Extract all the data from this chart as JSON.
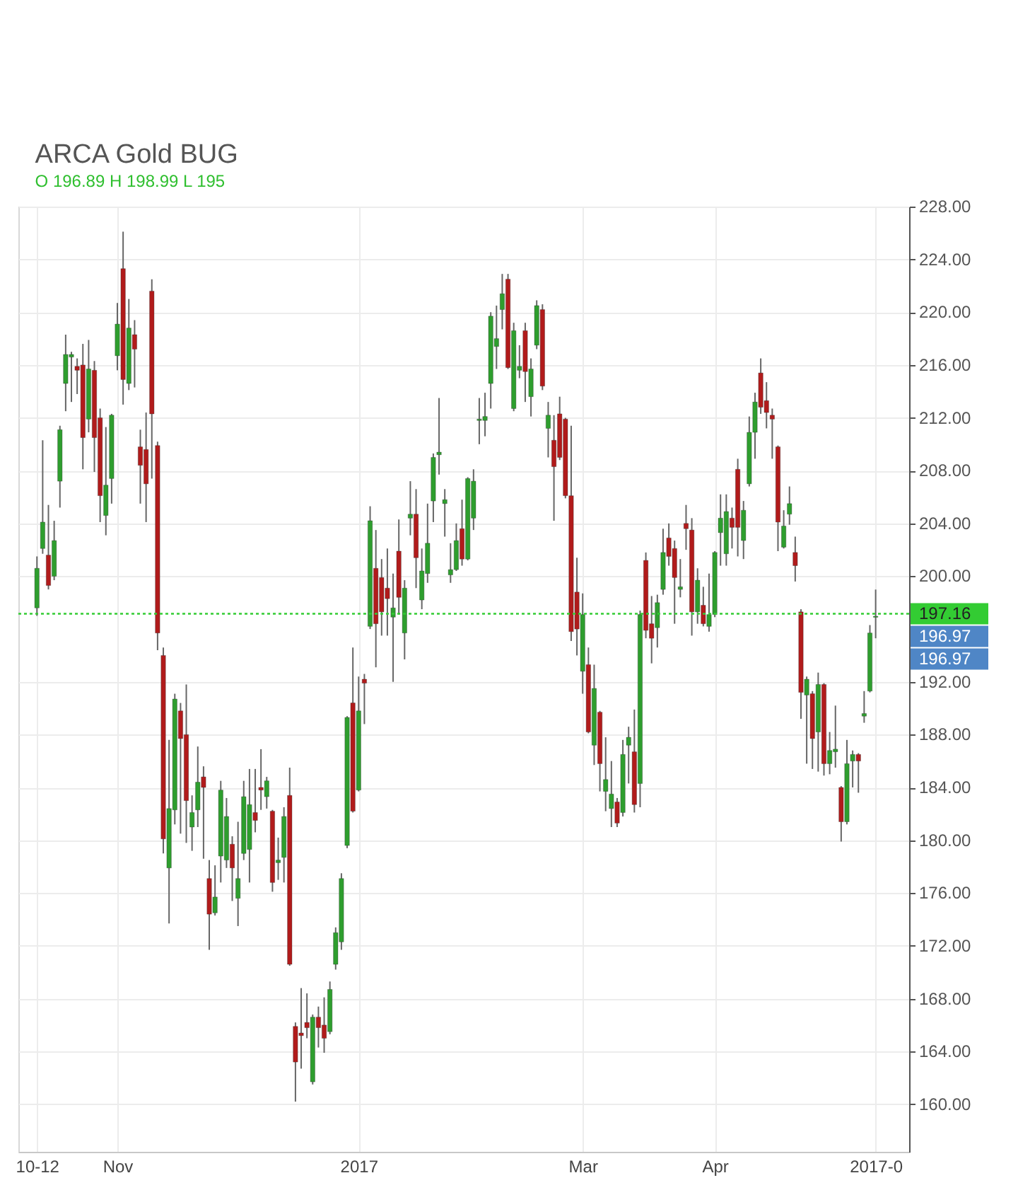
{
  "chart_data": {
    "type": "candlestick",
    "title": "ARCA Gold BUG",
    "subtitle": "O 196.89 H 198.99 L 195",
    "categories": [
      "10-12",
      null,
      null,
      null,
      null,
      null,
      null,
      null,
      null,
      null,
      null,
      null,
      null,
      null,
      "Nov",
      null,
      null,
      null,
      null,
      null,
      null,
      null,
      null,
      null,
      null,
      null,
      null,
      null,
      null,
      null,
      null,
      null,
      null,
      null,
      null,
      null,
      null,
      null,
      null,
      null,
      null,
      null,
      null,
      null,
      null,
      null,
      null,
      null,
      null,
      null,
      null,
      null,
      null,
      null,
      null,
      null,
      "2017",
      null,
      null,
      null,
      null,
      null,
      null,
      null,
      null,
      null,
      null,
      null,
      null,
      null,
      null,
      null,
      null,
      null,
      null,
      null,
      null,
      null,
      null,
      null,
      null,
      null,
      null,
      null,
      null,
      null,
      null,
      null,
      null,
      null,
      null,
      null,
      null,
      null,
      null,
      "Mar",
      null,
      null,
      null,
      null,
      null,
      null,
      null,
      null,
      null,
      null,
      null,
      null,
      null,
      null,
      null,
      null,
      null,
      null,
      null,
      null,
      null,
      null,
      "Apr",
      null,
      null,
      null,
      null,
      null,
      null,
      null,
      null,
      null,
      null,
      null,
      null,
      null,
      null,
      null,
      null,
      null,
      null,
      null,
      null,
      null,
      null,
      null,
      null,
      null,
      null,
      null,
      "2017-0"
    ],
    "ohlc": [
      [
        197.6,
        201.5,
        197.0,
        200.6
      ],
      [
        202.1,
        210.3,
        201.7,
        204.1
      ],
      [
        201.6,
        205.4,
        199.0,
        199.3
      ],
      [
        200.0,
        204.2,
        199.7,
        202.7
      ],
      [
        207.2,
        211.4,
        205.2,
        211.1
      ],
      [
        214.6,
        218.3,
        212.5,
        216.8
      ],
      [
        216.6,
        217.0,
        213.2,
        216.8
      ],
      [
        215.9,
        216.5,
        213.8,
        215.6
      ],
      [
        216.0,
        217.6,
        208.1,
        210.5
      ],
      [
        211.9,
        217.9,
        210.9,
        215.7
      ],
      [
        215.6,
        216.3,
        207.9,
        210.5
      ],
      [
        212.0,
        212.7,
        204.1,
        206.1
      ],
      [
        204.6,
        211.3,
        203.1,
        206.9
      ],
      [
        207.4,
        212.3,
        205.5,
        212.2
      ],
      [
        216.7,
        220.7,
        215.6,
        219.1
      ],
      [
        223.3,
        226.1,
        213.0,
        214.9
      ],
      [
        214.6,
        221.0,
        214.1,
        218.8
      ],
      [
        218.3,
        219.4,
        214.3,
        217.2
      ],
      [
        209.8,
        211.1,
        205.5,
        208.4
      ],
      [
        209.6,
        212.4,
        204.1,
        207.0
      ],
      [
        221.6,
        222.5,
        207.4,
        212.3
      ],
      [
        209.9,
        210.2,
        194.4,
        195.7
      ],
      [
        194.0,
        194.6,
        179.0,
        180.1
      ],
      [
        177.9,
        187.6,
        173.7,
        182.4
      ],
      [
        182.3,
        191.1,
        181.2,
        190.7
      ],
      [
        189.8,
        190.4,
        180.5,
        187.7
      ],
      [
        188.0,
        191.8,
        179.8,
        183.0
      ],
      [
        181.0,
        183.4,
        179.2,
        182.1
      ],
      [
        182.3,
        187.1,
        181.0,
        184.4
      ],
      [
        184.8,
        185.6,
        178.6,
        184.0
      ],
      [
        177.1,
        178.5,
        171.7,
        174.4
      ],
      [
        174.5,
        178.1,
        174.3,
        175.7
      ],
      [
        178.8,
        184.5,
        176.8,
        183.8
      ],
      [
        178.5,
        183.2,
        177.9,
        181.8
      ],
      [
        179.7,
        180.3,
        175.4,
        177.9
      ],
      [
        175.6,
        181.4,
        173.5,
        177.1
      ],
      [
        179.0,
        184.5,
        178.5,
        183.3
      ],
      [
        179.3,
        185.4,
        176.8,
        182.7
      ],
      [
        182.1,
        185.4,
        180.6,
        181.5
      ],
      [
        184.0,
        186.9,
        182.3,
        183.8
      ],
      [
        183.3,
        184.8,
        182.4,
        184.5
      ],
      [
        182.2,
        182.3,
        176.1,
        176.8
      ],
      [
        178.3,
        180.2,
        177.0,
        178.5
      ],
      [
        178.7,
        182.5,
        176.8,
        181.8
      ],
      [
        183.4,
        185.5,
        170.5,
        170.6
      ],
      [
        165.9,
        166.2,
        160.2,
        163.2
      ],
      [
        165.4,
        168.8,
        162.7,
        165.2
      ],
      [
        166.2,
        168.4,
        165.0,
        165.8
      ],
      [
        161.7,
        166.8,
        161.5,
        166.6
      ],
      [
        166.6,
        167.4,
        164.3,
        165.8
      ],
      [
        166.0,
        168.1,
        163.9,
        165.0
      ],
      [
        165.5,
        169.3,
        165.3,
        168.7
      ],
      [
        170.6,
        173.4,
        170.2,
        173.0
      ],
      [
        172.3,
        177.5,
        171.7,
        177.1
      ],
      [
        179.6,
        189.4,
        179.4,
        189.3
      ],
      [
        190.4,
        194.6,
        182.1,
        182.2
      ],
      [
        183.8,
        192.4,
        183.7,
        189.8
      ],
      [
        192.2,
        192.6,
        188.8,
        191.9
      ],
      [
        196.2,
        205.3,
        196.0,
        204.2
      ],
      [
        200.6,
        203.5,
        193.1,
        196.4
      ],
      [
        199.9,
        201.3,
        195.5,
        197.3
      ],
      [
        199.1,
        202.1,
        195.5,
        198.3
      ],
      [
        196.9,
        200.2,
        192.0,
        197.6
      ],
      [
        201.9,
        204.3,
        197.1,
        198.4
      ],
      [
        195.7,
        199.7,
        193.7,
        199.1
      ],
      [
        204.4,
        207.2,
        203.1,
        204.7
      ],
      [
        204.7,
        206.6,
        199.1,
        201.4
      ],
      [
        198.2,
        202.1,
        197.5,
        200.4
      ],
      [
        200.2,
        205.5,
        199.5,
        202.5
      ],
      [
        205.7,
        209.3,
        204.1,
        209.0
      ],
      [
        209.2,
        213.5,
        207.7,
        209.4
      ],
      [
        205.5,
        206.6,
        203.0,
        205.8
      ],
      [
        200.1,
        202.5,
        199.5,
        200.5
      ],
      [
        200.5,
        204.0,
        200.4,
        202.7
      ],
      [
        203.6,
        205.8,
        200.8,
        201.3
      ],
      [
        201.3,
        207.5,
        201.2,
        207.4
      ],
      [
        204.4,
        208.1,
        203.5,
        207.2
      ],
      [
        211.8,
        213.5,
        210.0,
        211.9
      ],
      [
        211.8,
        213.9,
        210.6,
        212.1
      ],
      [
        214.6,
        220.0,
        212.7,
        219.7
      ],
      [
        217.4,
        220.5,
        215.7,
        218.0
      ],
      [
        220.2,
        222.9,
        218.7,
        221.4
      ],
      [
        222.5,
        222.9,
        215.7,
        215.8
      ],
      [
        212.7,
        219.2,
        212.5,
        218.6
      ],
      [
        215.6,
        217.5,
        215.0,
        215.9
      ],
      [
        218.6,
        219.2,
        213.2,
        215.5
      ],
      [
        213.6,
        216.5,
        212.1,
        215.7
      ],
      [
        217.5,
        220.9,
        217.2,
        220.5
      ],
      [
        220.2,
        220.6,
        214.1,
        214.4
      ],
      [
        211.2,
        213.2,
        209.0,
        212.2
      ],
      [
        210.3,
        212.2,
        204.2,
        208.3
      ],
      [
        212.3,
        213.6,
        208.8,
        209.0
      ],
      [
        211.9,
        212.0,
        205.9,
        206.1
      ],
      [
        206.1,
        211.4,
        195.1,
        195.8
      ],
      [
        198.8,
        201.4,
        194.0,
        196.0
      ],
      [
        192.8,
        198.7,
        191.1,
        197.1
      ],
      [
        193.3,
        194.6,
        188.1,
        188.2
      ],
      [
        187.2,
        193.3,
        185.7,
        191.5
      ],
      [
        189.7,
        189.8,
        183.7,
        185.8
      ],
      [
        183.7,
        187.8,
        182.2,
        184.6
      ],
      [
        182.4,
        186.0,
        181.0,
        183.5
      ],
      [
        182.9,
        183.2,
        181.0,
        181.3
      ],
      [
        182.1,
        187.6,
        181.8,
        186.5
      ],
      [
        187.2,
        188.6,
        184.3,
        187.8
      ],
      [
        186.7,
        189.9,
        182.1,
        182.7
      ],
      [
        184.3,
        197.4,
        182.5,
        197.1
      ],
      [
        201.2,
        201.8,
        195.3,
        195.9
      ],
      [
        196.4,
        198.5,
        193.4,
        195.3
      ],
      [
        196.1,
        198.6,
        194.6,
        198.0
      ],
      [
        199.0,
        203.6,
        198.6,
        201.8
      ],
      [
        202.9,
        204.0,
        200.8,
        201.5
      ],
      [
        202.1,
        202.7,
        196.4,
        199.9
      ],
      [
        199.0,
        201.3,
        198.4,
        199.2
      ],
      [
        204.0,
        205.4,
        202.0,
        203.6
      ],
      [
        203.5,
        204.4,
        195.5,
        197.3
      ],
      [
        197.3,
        200.6,
        196.4,
        199.7
      ],
      [
        197.8,
        199.2,
        196.2,
        196.4
      ],
      [
        196.2,
        200.2,
        195.8,
        197.1
      ],
      [
        197.1,
        201.9,
        196.9,
        201.8
      ],
      [
        203.3,
        206.2,
        200.8,
        204.4
      ],
      [
        201.7,
        206.2,
        200.8,
        204.9
      ],
      [
        204.4,
        205.2,
        202.1,
        203.7
      ],
      [
        208.1,
        208.9,
        201.5,
        203.7
      ],
      [
        202.7,
        205.7,
        201.3,
        205.0
      ],
      [
        207.0,
        212.1,
        206.8,
        210.9
      ],
      [
        210.9,
        213.9,
        208.9,
        213.2
      ],
      [
        215.4,
        216.5,
        212.3,
        212.8
      ],
      [
        213.3,
        214.7,
        211.2,
        212.4
      ],
      [
        212.2,
        212.7,
        208.9,
        211.9
      ],
      [
        209.8,
        209.9,
        201.9,
        204.1
      ],
      [
        202.2,
        205.0,
        202.1,
        203.8
      ],
      [
        204.7,
        206.8,
        203.9,
        205.5
      ],
      [
        201.8,
        203.0,
        199.6,
        200.8
      ],
      [
        197.3,
        197.5,
        189.2,
        191.2
      ],
      [
        191.0,
        192.4,
        185.8,
        192.2
      ],
      [
        191.1,
        191.3,
        185.4,
        187.7
      ],
      [
        188.2,
        192.7,
        185.2,
        191.8
      ],
      [
        191.8,
        191.9,
        184.9,
        185.8
      ],
      [
        185.8,
        188.2,
        185.0,
        186.8
      ],
      [
        186.7,
        190.2,
        185.5,
        186.9
      ],
      [
        184.0,
        184.1,
        179.9,
        181.4
      ],
      [
        181.4,
        187.6,
        181.2,
        185.8
      ],
      [
        186.0,
        186.8,
        184.0,
        186.5
      ],
      [
        186.5,
        186.6,
        183.6,
        186.0
      ],
      [
        189.4,
        191.3,
        188.9,
        189.6
      ],
      [
        191.3,
        196.3,
        191.2,
        195.7
      ],
      [
        196.89,
        198.99,
        195.3,
        196.97
      ]
    ],
    "colors": [
      "#2e9e2e",
      "#2e9e2e",
      "#b11b1b",
      "#2e9e2e",
      "#2e9e2e",
      "#2e9e2e",
      "#2e9e2e",
      "#b11b1b",
      "#b11b1b",
      "#2e9e2e",
      "#b11b1b",
      "#b11b1b",
      "#2e9e2e",
      "#2e9e2e",
      "#2e9e2e",
      "#b11b1b",
      "#2e9e2e",
      "#b11b1b",
      "#b11b1b",
      "#b11b1b",
      "#b11b1b",
      "#b11b1b",
      "#b11b1b",
      "#2e9e2e",
      "#2e9e2e",
      "#b11b1b",
      "#b11b1b",
      "#2e9e2e",
      "#2e9e2e",
      "#b11b1b",
      "#b11b1b",
      "#2e9e2e",
      "#2e9e2e",
      "#2e9e2e",
      "#b11b1b",
      "#2e9e2e",
      "#2e9e2e",
      "#2e9e2e",
      "#b11b1b",
      "#b11b1b",
      "#2e9e2e",
      "#b11b1b",
      "#2e9e2e",
      "#2e9e2e",
      "#b11b1b",
      "#b11b1b",
      "#b11b1b",
      "#b11b1b",
      "#2e9e2e",
      "#b11b1b",
      "#b11b1b",
      "#2e9e2e",
      "#2e9e2e",
      "#2e9e2e",
      "#2e9e2e",
      "#b11b1b",
      "#2e9e2e",
      "#b11b1b",
      "#2e9e2e",
      "#b11b1b",
      "#b11b1b",
      "#b11b1b",
      "#2e9e2e",
      "#b11b1b",
      "#2e9e2e",
      "#2e9e2e",
      "#b11b1b",
      "#2e9e2e",
      "#2e9e2e",
      "#2e9e2e",
      "#2e9e2e",
      "#2e9e2e",
      "#2e9e2e",
      "#2e9e2e",
      "#b11b1b",
      "#2e9e2e",
      "#2e9e2e",
      "#2e9e2e",
      "#2e9e2e",
      "#2e9e2e",
      "#2e9e2e",
      "#2e9e2e",
      "#b11b1b",
      "#2e9e2e",
      "#2e9e2e",
      "#b11b1b",
      "#2e9e2e",
      "#2e9e2e",
      "#b11b1b",
      "#2e9e2e",
      "#b11b1b",
      "#b11b1b",
      "#b11b1b",
      "#b11b1b",
      "#b11b1b",
      "#2e9e2e",
      "#b11b1b",
      "#2e9e2e",
      "#b11b1b",
      "#2e9e2e",
      "#2e9e2e",
      "#b11b1b",
      "#2e9e2e",
      "#2e9e2e",
      "#b11b1b",
      "#2e9e2e",
      "#b11b1b",
      "#b11b1b",
      "#2e9e2e",
      "#2e9e2e",
      "#b11b1b",
      "#b11b1b",
      "#2e9e2e",
      "#b11b1b",
      "#b11b1b",
      "#2e9e2e",
      "#b11b1b",
      "#2e9e2e",
      "#2e9e2e",
      "#2e9e2e",
      "#2e9e2e",
      "#b11b1b",
      "#b11b1b",
      "#2e9e2e",
      "#2e9e2e",
      "#2e9e2e",
      "#b11b1b",
      "#b11b1b",
      "#b11b1b",
      "#b11b1b",
      "#2e9e2e",
      "#2e9e2e",
      "#b11b1b",
      "#b11b1b",
      "#2e9e2e",
      "#b11b1b",
      "#2e9e2e",
      "#b11b1b",
      "#2e9e2e",
      "#2e9e2e",
      "#b11b1b",
      "#2e9e2e",
      "#2e9e2e",
      "#b11b1b",
      "#2e9e2e",
      "#2e9e2e",
      "#2e9e2e"
    ],
    "ylim": [
      156.4,
      228.0
    ],
    "yticks": [
      {
        "value": 160,
        "label": "160.00"
      },
      {
        "value": 164,
        "label": "164.00"
      },
      {
        "value": 168,
        "label": "168.00"
      },
      {
        "value": 172,
        "label": "172.00"
      },
      {
        "value": 176,
        "label": "176.00"
      },
      {
        "value": 180,
        "label": "180.00"
      },
      {
        "value": 184,
        "label": "184.00"
      },
      {
        "value": 188,
        "label": "188.00"
      },
      {
        "value": 192,
        "label": "192.00"
      },
      {
        "value": 200,
        "label": "200.00"
      },
      {
        "value": 204,
        "label": "204.00"
      },
      {
        "value": 208,
        "label": "208.00"
      },
      {
        "value": 212,
        "label": "212.00"
      },
      {
        "value": 216,
        "label": "216.00"
      },
      {
        "value": 220,
        "label": "220.00"
      },
      {
        "value": 224,
        "label": "224.00"
      },
      {
        "value": 228,
        "label": "228.00"
      }
    ],
    "grid": true,
    "ref_lines": [
      {
        "axis": "y",
        "value": 197.16,
        "label": "197.16",
        "color": "#33cc33",
        "line_style": "dotted"
      }
    ],
    "annotations": [
      "196.97",
      "196.97"
    ]
  }
}
